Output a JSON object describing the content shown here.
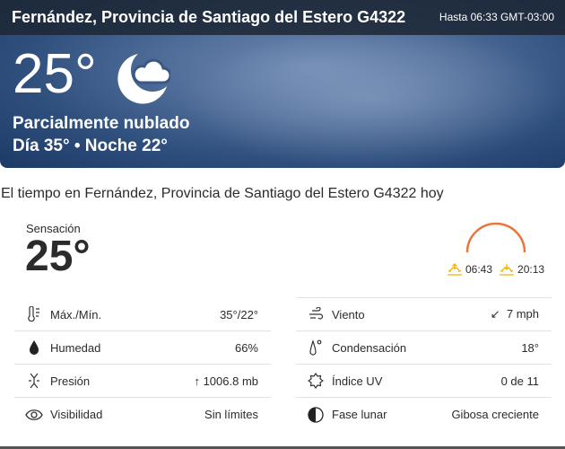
{
  "hero": {
    "location": "Fernández, Provincia de Santiago del Estero G4322",
    "valid_until": "Hasta 06:33 GMT-03:00",
    "temperature": "25°",
    "icon": "partly-cloudy-night-icon",
    "condition": "Parcialmente nublado",
    "day_night": "Día 35° • Noche 22°"
  },
  "section_title": "El tiempo en Fernández, Provincia de Santiago del Estero G4322 hoy",
  "feels_like": {
    "label": "Sensación",
    "value": "25°"
  },
  "sun": {
    "sunrise": "06:43",
    "sunset": "20:13",
    "arc_color": "#e8773a",
    "icon_color": "#f0b400"
  },
  "details_left": [
    {
      "icon": "thermometer-icon",
      "label": "Máx./Mín.",
      "value": "35°/22°"
    },
    {
      "icon": "humidity-drop-icon",
      "label": "Humedad",
      "value": "66%"
    },
    {
      "icon": "pressure-icon",
      "label": "Presión",
      "value": "↑ 1006.8 mb"
    },
    {
      "icon": "eye-icon",
      "label": "Visibilidad",
      "value": "Sin límites"
    }
  ],
  "details_right": [
    {
      "icon": "wind-icon",
      "label": "Viento",
      "value": "↙  7 mph"
    },
    {
      "icon": "dew-point-icon",
      "label": "Condensación",
      "value": "18°"
    },
    {
      "icon": "uv-sun-icon",
      "label": "Índice UV",
      "value": "0 de 11"
    },
    {
      "icon": "moon-phase-icon",
      "label": "Fase lunar",
      "value": "Gibosa creciente"
    }
  ]
}
